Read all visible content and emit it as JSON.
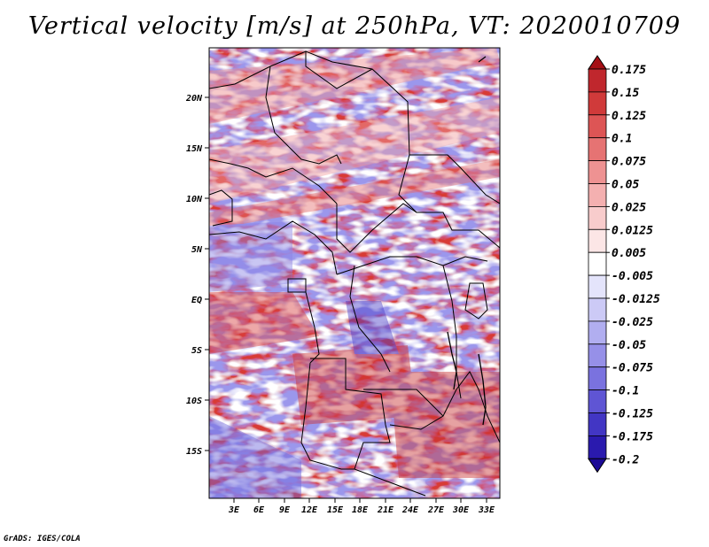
{
  "title": "Vertical velocity [m/s] at 250hPa, VT: 2020010709",
  "credit": "GrADS: IGES/COLA",
  "map": {
    "region": "Central Africa",
    "lat_labels": [
      "20N",
      "15N",
      "10N",
      "5N",
      "EQ",
      "5S",
      "10S",
      "15S"
    ],
    "lon_labels": [
      "3E",
      "6E",
      "9E",
      "12E",
      "15E",
      "18E",
      "21E",
      "24E",
      "27E",
      "30E",
      "33E"
    ],
    "lat_range": [
      -19.5,
      24.5
    ],
    "lon_range": [
      0.5,
      35
    ]
  },
  "colorbar": {
    "levels": [
      "0.175",
      "0.15",
      "0.125",
      "0.1",
      "0.075",
      "0.05",
      "0.025",
      "0.0125",
      "0.005",
      "-0.005",
      "-0.0125",
      "-0.025",
      "-0.05",
      "-0.075",
      "-0.1",
      "-0.125",
      "-0.175",
      "-0.2"
    ],
    "colors": [
      "#a50f15",
      "#c0272d",
      "#d03a3a",
      "#dd5555",
      "#e67373",
      "#ee9292",
      "#f4b0b0",
      "#f8cccc",
      "#fce6e6",
      "#ffffff",
      "#e4e4fb",
      "#cccaf6",
      "#b1aef0",
      "#9690e8",
      "#7a72df",
      "#5f55d4",
      "#4236c4",
      "#2a1aae",
      "#1c0a96"
    ]
  }
}
